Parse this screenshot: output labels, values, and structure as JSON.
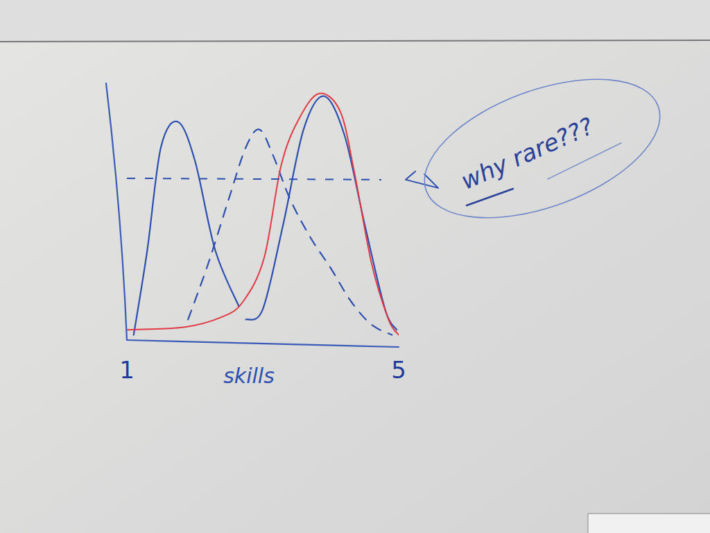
{
  "chart_data": {
    "type": "line",
    "xlabel": "skills",
    "xlim": [
      1,
      5
    ],
    "xticks": [
      1,
      5
    ],
    "ylim": [
      0,
      100
    ],
    "tick_labels": "x",
    "reference_line": 63,
    "annotation": "why rare???",
    "series": [
      {
        "color": "#2c4fae",
        "line_style": "solid",
        "x": [
          1.1,
          1.3,
          1.5,
          1.75,
          2.0,
          2.3,
          2.65
        ],
        "values": [
          2,
          35,
          75,
          85,
          70,
          35,
          13
        ]
      },
      {
        "color": "#2c4fae",
        "line_style": "dashed",
        "x": [
          1.9,
          2.2,
          2.5,
          2.75,
          2.95,
          3.15,
          3.4,
          3.7,
          4.0,
          4.3,
          4.6,
          4.9
        ],
        "values": [
          8,
          30,
          55,
          75,
          82,
          72,
          55,
          40,
          28,
          15,
          6,
          2
        ]
      },
      {
        "color": "#2c4fae",
        "line_style": "solid",
        "x": [
          2.75,
          3.0,
          3.3,
          3.6,
          3.9,
          4.2,
          4.5,
          4.8,
          4.97
        ],
        "values": [
          8,
          12,
          45,
          82,
          95,
          80,
          45,
          12,
          4
        ]
      },
      {
        "color": "#e23a44",
        "line_style": "solid",
        "x": [
          1.0,
          1.84,
          2.4,
          2.71,
          3.02,
          3.27,
          3.53,
          3.83,
          4.14,
          4.35,
          4.6,
          4.85,
          5.0
        ],
        "values": [
          4,
          5,
          9,
          15,
          32,
          68,
          86,
          96,
          89,
          65,
          30,
          8,
          2
        ]
      }
    ]
  }
}
